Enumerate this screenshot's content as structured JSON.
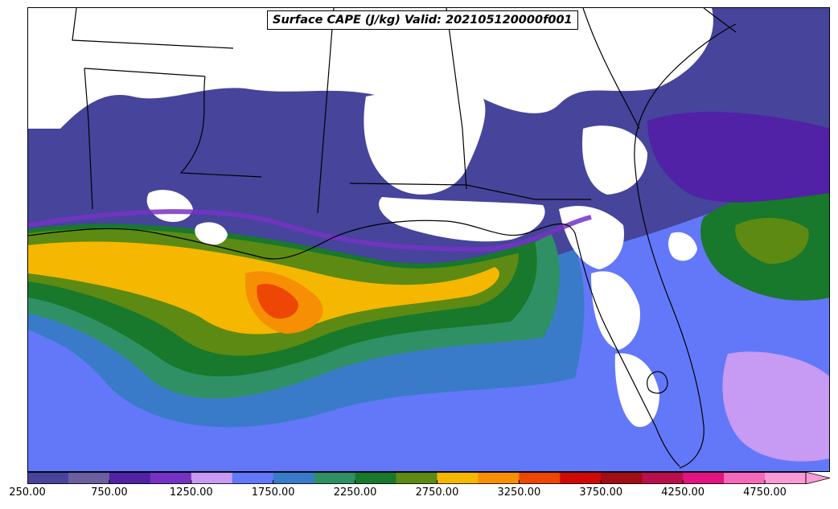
{
  "title": "Surface CAPE (J/kg) Valid: 202105120000f001",
  "colorbar": {
    "levels": [
      "250.00",
      "500.00",
      "750.00",
      "1000.00",
      "1250.00",
      "1500.00",
      "1750.00",
      "2000.00",
      "2250.00",
      "2500.00",
      "2750.00",
      "3000.00",
      "3250.00",
      "3500.00",
      "3750.00",
      "4000.00",
      "4250.00",
      "4500.00",
      "4750.00"
    ],
    "colors": [
      "#46449b",
      "#6b5f9f",
      "#5121a6",
      "#7532c4",
      "#c79af3",
      "#6378f8",
      "#3a7bc9",
      "#2e9064",
      "#18782c",
      "#5d8a12",
      "#f5b700",
      "#f68f03",
      "#ee4605",
      "#d00903",
      "#a20c14",
      "#b90e4a",
      "#e3137f",
      "#f56ab8",
      "#fb9bd6"
    ],
    "tick_labels": [
      "250.00",
      "750.00",
      "1250.00",
      "1750.00",
      "2250.00",
      "2750.00",
      "3250.00",
      "3750.00",
      "4250.00",
      "4750.00"
    ],
    "extend": "max"
  },
  "regions": {
    "land_color": "#ffffff",
    "border_color": "#000000"
  }
}
